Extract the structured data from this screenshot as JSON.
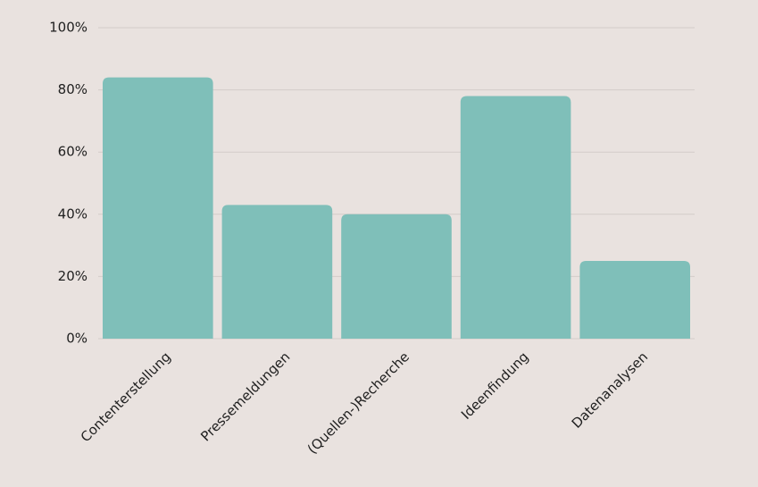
{
  "chart_data": {
    "type": "bar",
    "categories": [
      "Contenterstellung",
      "Pressemeldungen",
      "(Quellen-)Recherche",
      "Ideenfindung",
      "Datenanalysen"
    ],
    "values": [
      84,
      43,
      40,
      78,
      25
    ],
    "color": "#7fbfb9",
    "ylim": [
      0,
      100
    ],
    "yticks": [
      {
        "value": 0,
        "label": "0%"
      },
      {
        "value": 20,
        "label": "20%"
      },
      {
        "value": 40,
        "label": "40%"
      },
      {
        "value": 60,
        "label": "60%"
      },
      {
        "value": 80,
        "label": "80%"
      },
      {
        "value": 100,
        "label": "100%"
      }
    ],
    "grid": true
  }
}
